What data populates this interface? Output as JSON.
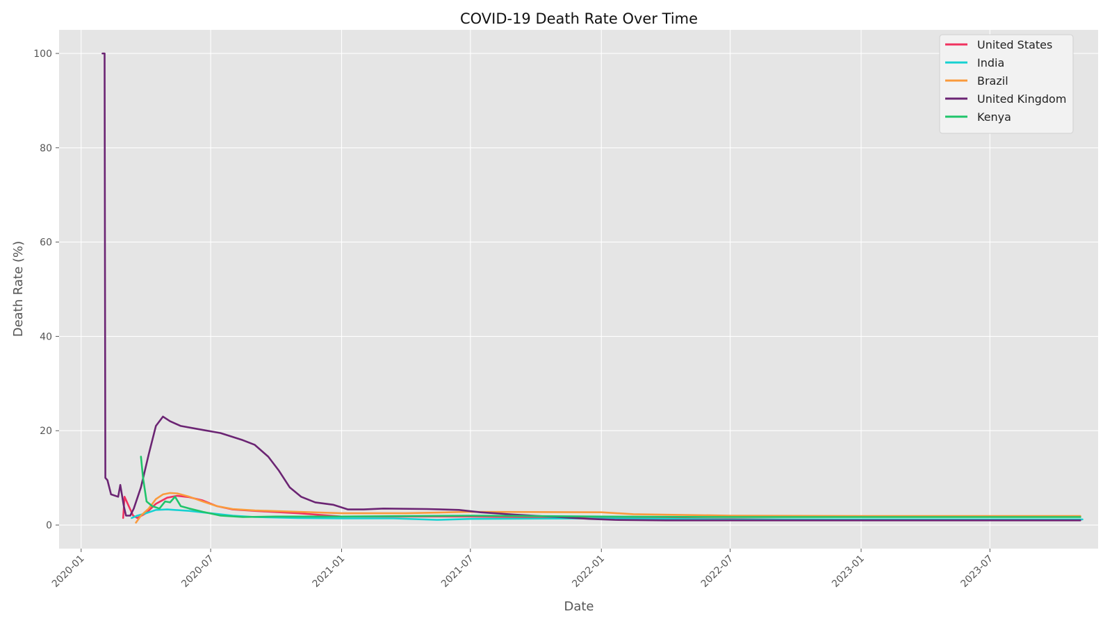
{
  "chart_data": {
    "type": "line",
    "title": "COVID-19 Death Rate Over Time",
    "xlabel": "Date",
    "ylabel": "Death Rate (%)",
    "xlim": [
      "2019-12-01",
      "2023-11-30"
    ],
    "ylim": [
      -5,
      105
    ],
    "grid": true,
    "legend_position": "top-right",
    "x_ticks": [
      "2020-01",
      "2020-07",
      "2021-01",
      "2021-07",
      "2022-01",
      "2022-07",
      "2023-01",
      "2023-07"
    ],
    "y_ticks": [
      0,
      20,
      40,
      60,
      80,
      100
    ],
    "series": [
      {
        "name": "United States",
        "color": "#F0325F",
        "points": [
          [
            "2020-02-29",
            1.5
          ],
          [
            "2020-03-02",
            6.0
          ],
          [
            "2020-03-08",
            4.0
          ],
          [
            "2020-03-14",
            2.0
          ],
          [
            "2020-03-20",
            1.5
          ],
          [
            "2020-04-01",
            2.5
          ],
          [
            "2020-04-15",
            4.5
          ],
          [
            "2020-05-01",
            5.8
          ],
          [
            "2020-05-15",
            6.2
          ],
          [
            "2020-06-01",
            5.9
          ],
          [
            "2020-06-20",
            5.2
          ],
          [
            "2020-07-10",
            4.0
          ],
          [
            "2020-08-01",
            3.3
          ],
          [
            "2020-09-01",
            3.0
          ],
          [
            "2020-11-01",
            2.5
          ],
          [
            "2021-01-01",
            1.8
          ],
          [
            "2021-07-01",
            1.8
          ],
          [
            "2022-01-01",
            1.5
          ],
          [
            "2023-01-01",
            1.1
          ],
          [
            "2023-11-05",
            1.1
          ]
        ]
      },
      {
        "name": "India",
        "color": "#17D1D1",
        "points": [
          [
            "2020-03-12",
            1.5
          ],
          [
            "2020-03-20",
            2.0
          ],
          [
            "2020-04-01",
            2.5
          ],
          [
            "2020-04-15",
            3.2
          ],
          [
            "2020-05-01",
            3.3
          ],
          [
            "2020-06-01",
            3.0
          ],
          [
            "2020-07-01",
            2.5
          ],
          [
            "2020-08-01",
            2.0
          ],
          [
            "2020-09-01",
            1.7
          ],
          [
            "2020-11-01",
            1.5
          ],
          [
            "2021-01-01",
            1.4
          ],
          [
            "2021-03-15",
            1.4
          ],
          [
            "2021-05-15",
            1.1
          ],
          [
            "2021-07-01",
            1.3
          ],
          [
            "2022-01-01",
            1.4
          ],
          [
            "2022-07-01",
            1.2
          ],
          [
            "2023-01-01",
            1.2
          ],
          [
            "2023-11-08",
            1.2
          ]
        ]
      },
      {
        "name": "Brazil",
        "color": "#FA9A3C",
        "points": [
          [
            "2020-03-18",
            0.5
          ],
          [
            "2020-03-25",
            2.0
          ],
          [
            "2020-04-05",
            3.5
          ],
          [
            "2020-04-15",
            5.5
          ],
          [
            "2020-04-25",
            6.5
          ],
          [
            "2020-05-05",
            6.8
          ],
          [
            "2020-05-15",
            6.7
          ],
          [
            "2020-06-01",
            6.0
          ],
          [
            "2020-06-20",
            5.0
          ],
          [
            "2020-07-10",
            4.0
          ],
          [
            "2020-08-01",
            3.4
          ],
          [
            "2020-09-01",
            3.1
          ],
          [
            "2020-11-01",
            2.8
          ],
          [
            "2021-01-01",
            2.5
          ],
          [
            "2021-04-01",
            2.5
          ],
          [
            "2021-07-01",
            2.8
          ],
          [
            "2022-01-01",
            2.7
          ],
          [
            "2022-02-15",
            2.3
          ],
          [
            "2022-07-01",
            2.0
          ],
          [
            "2023-01-01",
            1.9
          ],
          [
            "2023-11-05",
            1.9
          ]
        ]
      },
      {
        "name": "United Kingdom",
        "color": "#6B2473",
        "points": [
          [
            "2020-01-31",
            100
          ],
          [
            "2020-02-03",
            100
          ],
          [
            "2020-02-04",
            10
          ],
          [
            "2020-02-07",
            9.5
          ],
          [
            "2020-02-12",
            6.5
          ],
          [
            "2020-02-22",
            6.0
          ],
          [
            "2020-02-25",
            8.5
          ],
          [
            "2020-03-01",
            4.0
          ],
          [
            "2020-03-04",
            2.0
          ],
          [
            "2020-03-10",
            2.0
          ],
          [
            "2020-03-15",
            3.5
          ],
          [
            "2020-03-25",
            8.0
          ],
          [
            "2020-04-05",
            15.0
          ],
          [
            "2020-04-15",
            21.0
          ],
          [
            "2020-04-25",
            23.0
          ],
          [
            "2020-05-05",
            22.0
          ],
          [
            "2020-05-20",
            21.0
          ],
          [
            "2020-06-15",
            20.3
          ],
          [
            "2020-07-15",
            19.5
          ],
          [
            "2020-08-15",
            18.0
          ],
          [
            "2020-09-01",
            17.0
          ],
          [
            "2020-09-20",
            14.5
          ],
          [
            "2020-10-05",
            11.5
          ],
          [
            "2020-10-20",
            8.0
          ],
          [
            "2020-11-05",
            6.0
          ],
          [
            "2020-11-25",
            4.8
          ],
          [
            "2020-12-20",
            4.3
          ],
          [
            "2021-01-10",
            3.3
          ],
          [
            "2021-02-01",
            3.3
          ],
          [
            "2021-03-01",
            3.5
          ],
          [
            "2021-05-01",
            3.4
          ],
          [
            "2021-06-15",
            3.2
          ],
          [
            "2021-07-15",
            2.7
          ],
          [
            "2021-09-01",
            2.2
          ],
          [
            "2021-11-01",
            1.7
          ],
          [
            "2021-12-15",
            1.3
          ],
          [
            "2022-01-20",
            1.1
          ],
          [
            "2022-04-01",
            1.0
          ],
          [
            "2022-07-01",
            1.0
          ],
          [
            "2023-01-01",
            1.0
          ],
          [
            "2023-11-05",
            1.0
          ]
        ]
      },
      {
        "name": "Kenya",
        "color": "#1FC46A",
        "points": [
          [
            "2020-03-25",
            14.5
          ],
          [
            "2020-03-28",
            10.0
          ],
          [
            "2020-04-02",
            5.0
          ],
          [
            "2020-04-10",
            4.0
          ],
          [
            "2020-04-20",
            3.5
          ],
          [
            "2020-04-28",
            5.0
          ],
          [
            "2020-05-05",
            4.8
          ],
          [
            "2020-05-12",
            6.0
          ],
          [
            "2020-05-20",
            4.0
          ],
          [
            "2020-06-01",
            3.5
          ],
          [
            "2020-06-20",
            2.8
          ],
          [
            "2020-07-15",
            2.0
          ],
          [
            "2020-08-15",
            1.7
          ],
          [
            "2020-10-01",
            1.8
          ],
          [
            "2021-01-01",
            1.8
          ],
          [
            "2021-07-01",
            2.0
          ],
          [
            "2022-01-01",
            1.8
          ],
          [
            "2022-07-01",
            1.7
          ],
          [
            "2023-01-01",
            1.7
          ],
          [
            "2023-11-05",
            1.7
          ]
        ]
      }
    ]
  }
}
